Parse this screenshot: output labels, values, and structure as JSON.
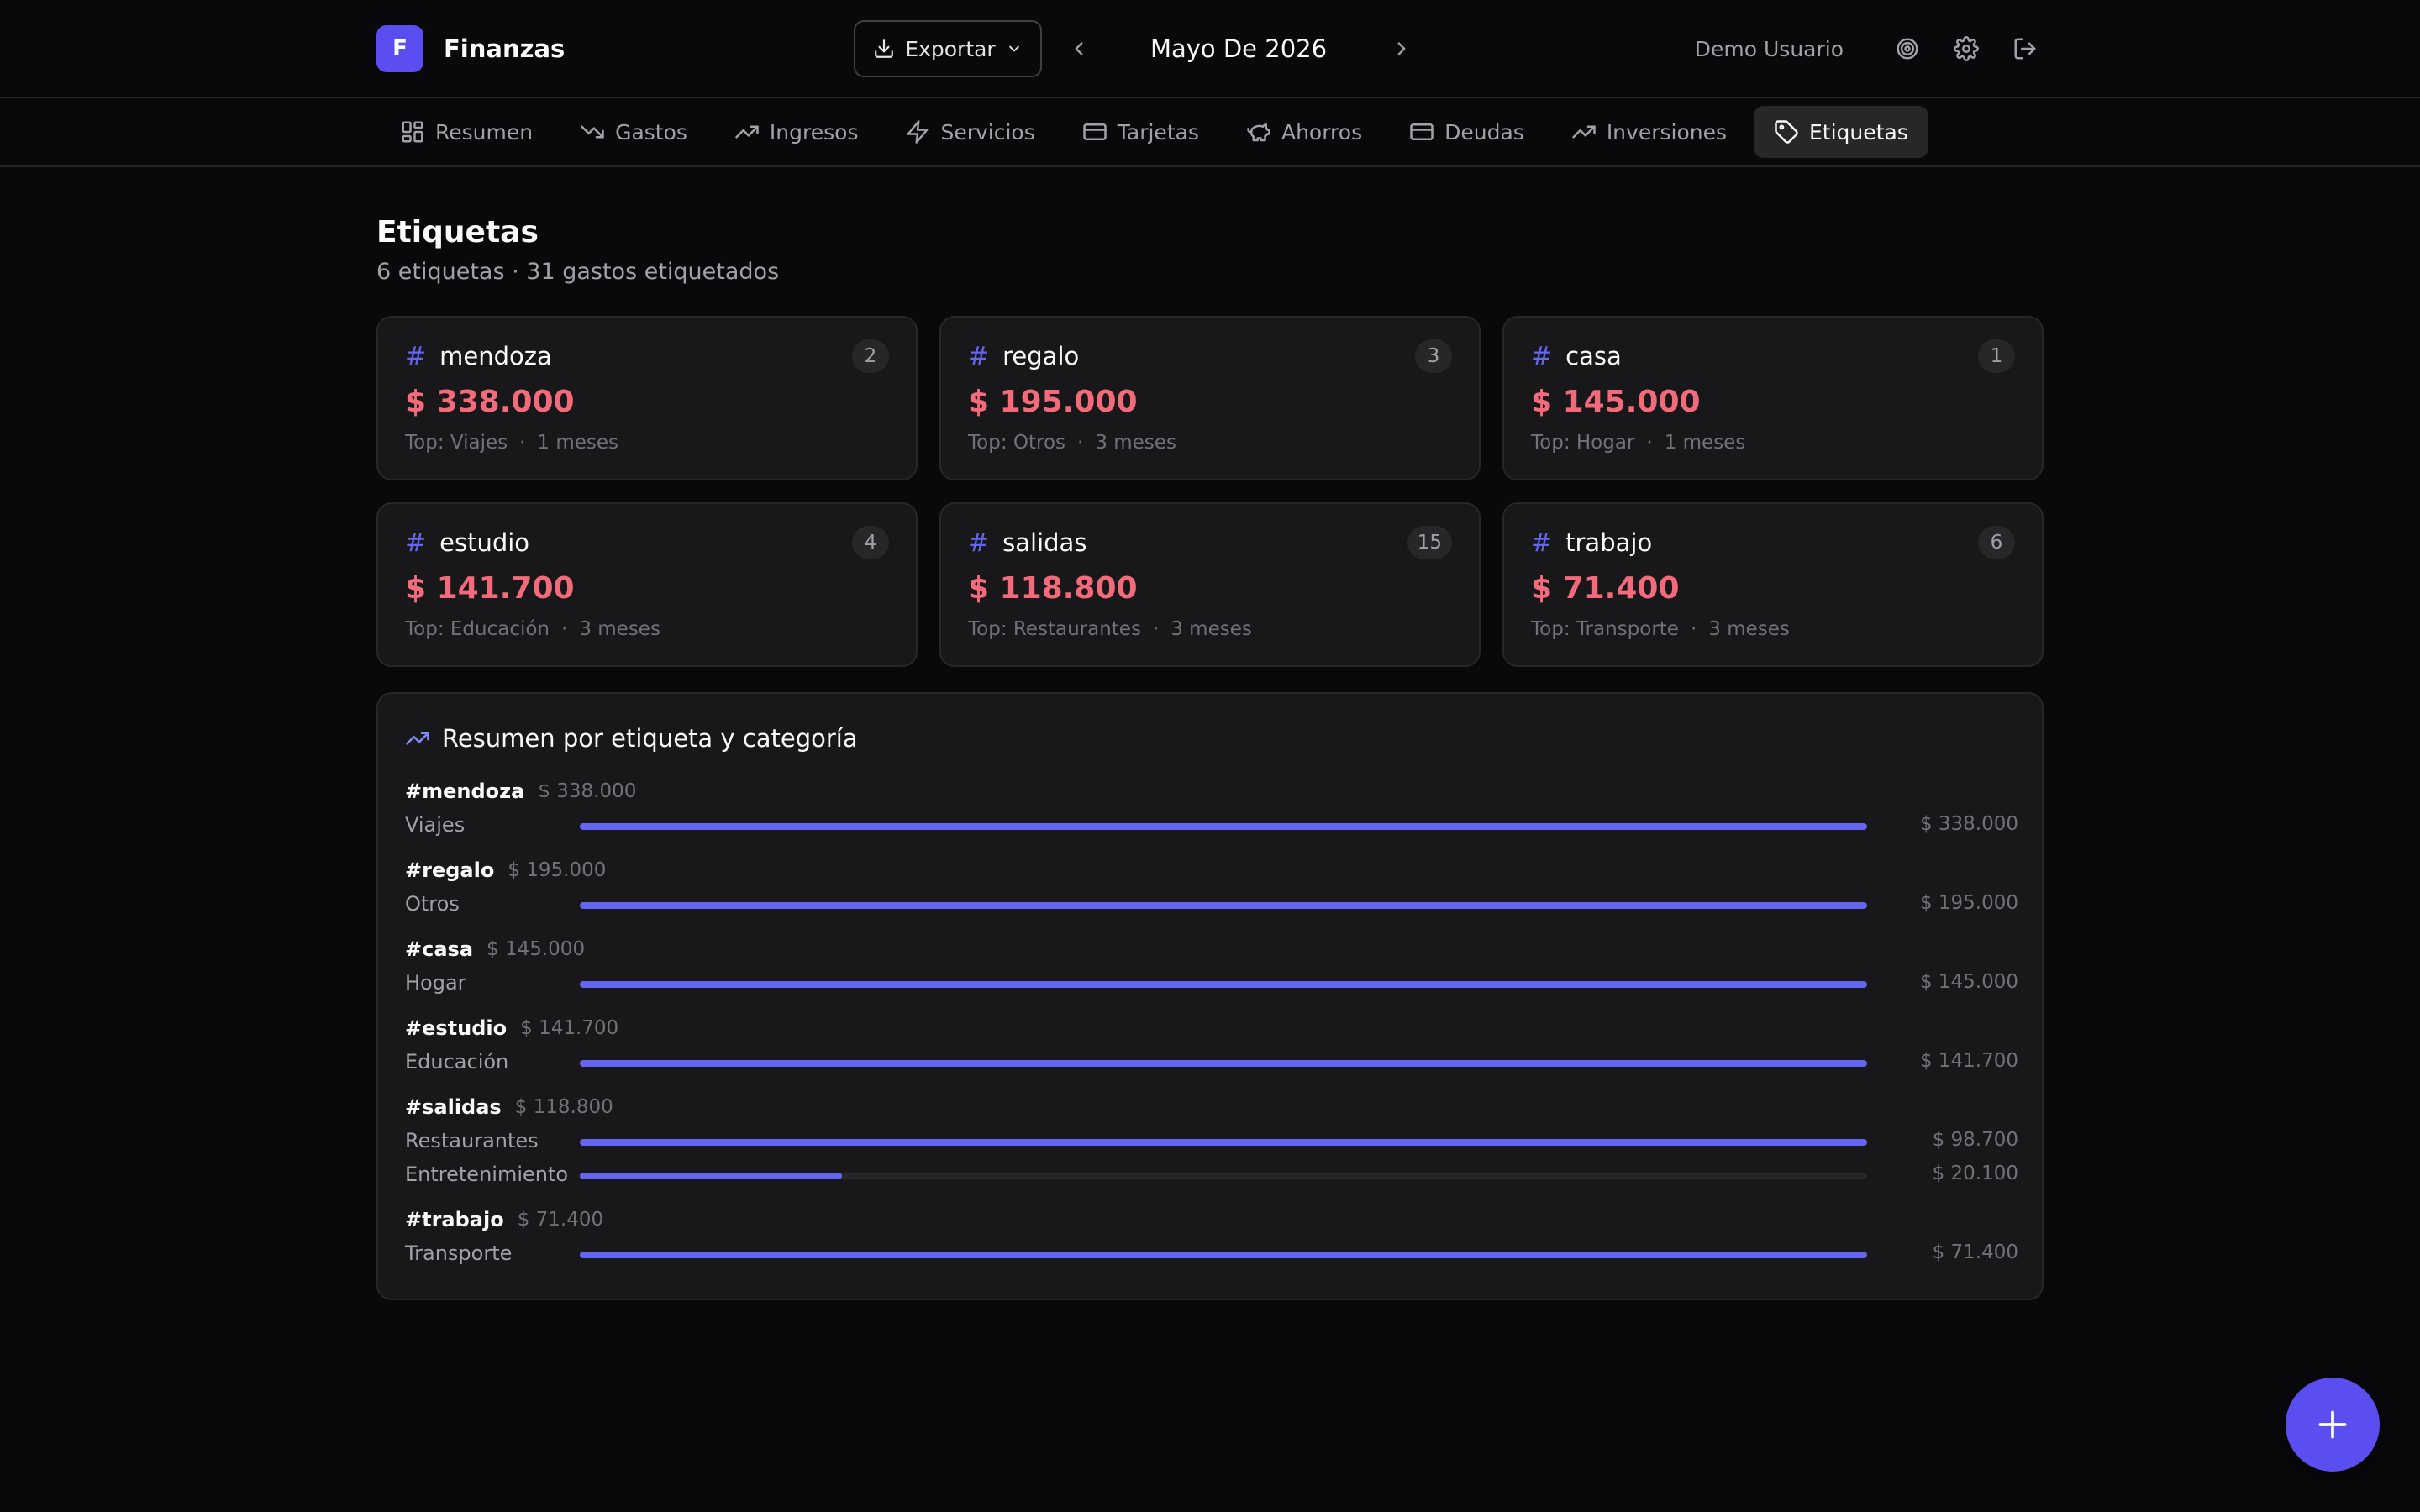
{
  "brand": {
    "logo_letter": "F",
    "name": "Finanzas"
  },
  "header": {
    "export_label": "Exportar",
    "month_label": "Mayo De 2026",
    "user_name": "Demo Usuario"
  },
  "nav": {
    "items": [
      {
        "label": "Resumen",
        "icon": "layout-grid-icon",
        "active": false
      },
      {
        "label": "Gastos",
        "icon": "trending-down-icon",
        "active": false
      },
      {
        "label": "Ingresos",
        "icon": "trending-up-icon",
        "active": false
      },
      {
        "label": "Servicios",
        "icon": "zap-icon",
        "active": false
      },
      {
        "label": "Tarjetas",
        "icon": "credit-card-icon",
        "active": false
      },
      {
        "label": "Ahorros",
        "icon": "piggy-bank-icon",
        "active": false
      },
      {
        "label": "Deudas",
        "icon": "wallet-card-icon",
        "active": false
      },
      {
        "label": "Inversiones",
        "icon": "trending-up-icon",
        "active": false
      },
      {
        "label": "Etiquetas",
        "icon": "tag-icon",
        "active": true
      }
    ]
  },
  "page": {
    "title": "Etiquetas",
    "subtitle": "6 etiquetas · 31 gastos etiquetados"
  },
  "cards": [
    {
      "hash": "#",
      "name": "mendoza",
      "count": "2",
      "amount": "$ 338.000",
      "top": "Top: Viajes",
      "sep": "·",
      "months": "1 meses"
    },
    {
      "hash": "#",
      "name": "regalo",
      "count": "3",
      "amount": "$ 195.000",
      "top": "Top: Otros",
      "sep": "·",
      "months": "3 meses"
    },
    {
      "hash": "#",
      "name": "casa",
      "count": "1",
      "amount": "$ 145.000",
      "top": "Top: Hogar",
      "sep": "·",
      "months": "1 meses"
    },
    {
      "hash": "#",
      "name": "estudio",
      "count": "4",
      "amount": "$ 141.700",
      "top": "Top: Educación",
      "sep": "·",
      "months": "3 meses"
    },
    {
      "hash": "#",
      "name": "salidas",
      "count": "15",
      "amount": "$ 118.800",
      "top": "Top: Restaurantes",
      "sep": "·",
      "months": "3 meses"
    },
    {
      "hash": "#",
      "name": "trabajo",
      "count": "6",
      "amount": "$ 71.400",
      "top": "Top: Transporte",
      "sep": "·",
      "months": "3 meses"
    }
  ],
  "summary": {
    "title": "Resumen por etiqueta y categoría",
    "groups": [
      {
        "tag": "#mendoza",
        "total": "$ 338.000",
        "rows": [
          {
            "category": "Viajes",
            "amount": "$ 338.000",
            "fraction": 1.0
          }
        ]
      },
      {
        "tag": "#regalo",
        "total": "$ 195.000",
        "rows": [
          {
            "category": "Otros",
            "amount": "$ 195.000",
            "fraction": 1.0
          }
        ]
      },
      {
        "tag": "#casa",
        "total": "$ 145.000",
        "rows": [
          {
            "category": "Hogar",
            "amount": "$ 145.000",
            "fraction": 1.0
          }
        ]
      },
      {
        "tag": "#estudio",
        "total": "$ 141.700",
        "rows": [
          {
            "category": "Educación",
            "amount": "$ 141.700",
            "fraction": 1.0
          }
        ]
      },
      {
        "tag": "#salidas",
        "total": "$ 118.800",
        "rows": [
          {
            "category": "Restaurantes",
            "amount": "$ 98.700",
            "fraction": 1.0
          },
          {
            "category": "Entretenimiento",
            "amount": "$ 20.100",
            "fraction": 0.2036
          }
        ]
      },
      {
        "tag": "#trabajo",
        "total": "$ 71.400",
        "rows": [
          {
            "category": "Transporte",
            "amount": "$ 71.400",
            "fraction": 1.0
          }
        ]
      }
    ]
  },
  "colors": {
    "accent": "#6366f1",
    "brand": "#5b4ef0",
    "amount": "#f36b7a",
    "background": "#09090b",
    "card": "#18181b"
  }
}
